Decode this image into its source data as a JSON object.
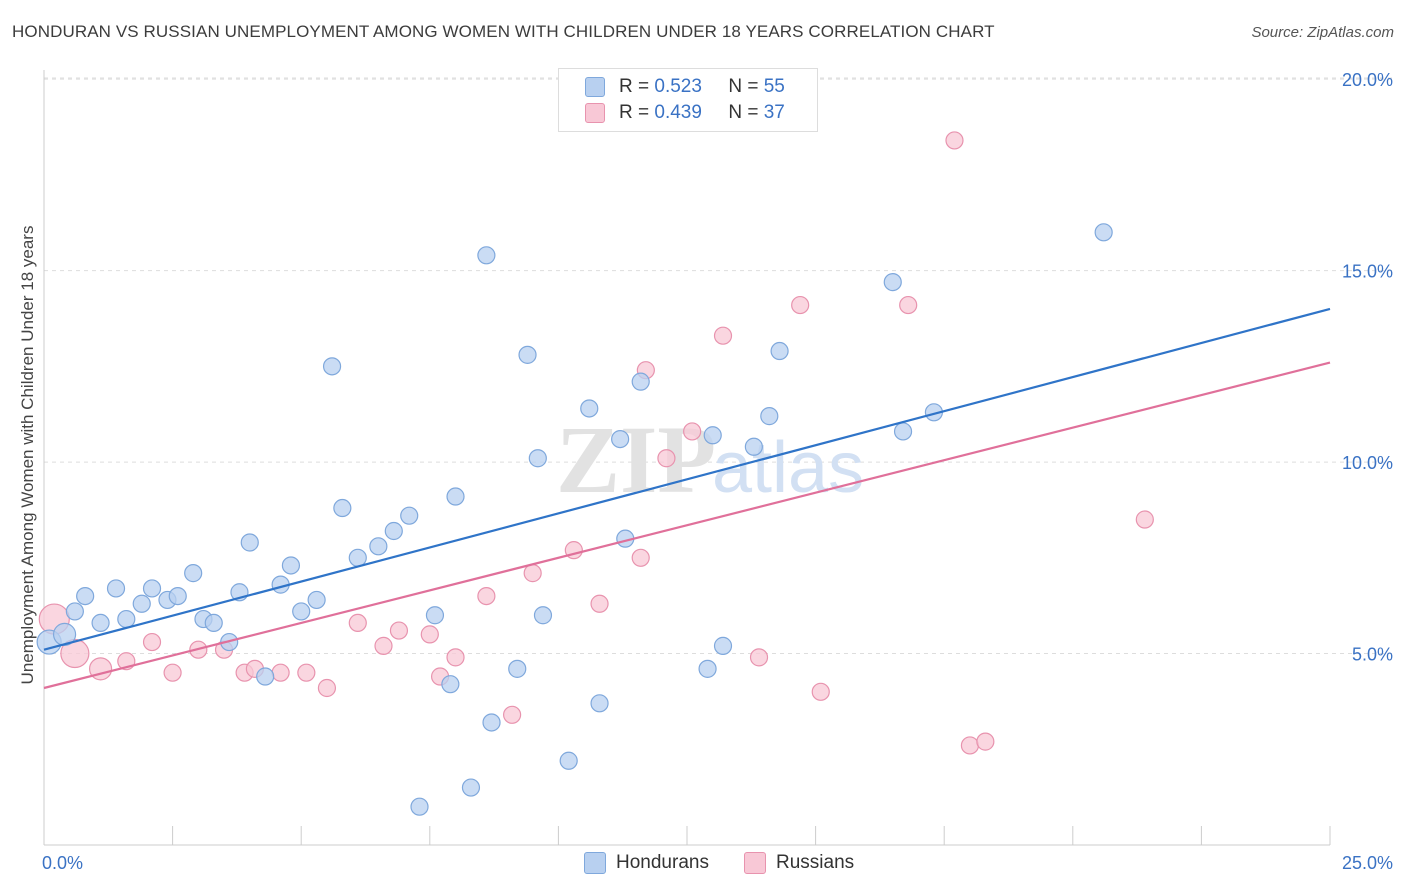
{
  "title": "HONDURAN VS RUSSIAN UNEMPLOYMENT AMONG WOMEN WITH CHILDREN UNDER 18 YEARS CORRELATION CHART",
  "source": "Source: ZipAtlas.com",
  "watermark": {
    "zip": "ZIP",
    "atlas": "atlas"
  },
  "legend": {
    "items": [
      {
        "r_label": "R = ",
        "r_value": "0.523",
        "n_label": "N = ",
        "n_value": "55"
      },
      {
        "r_label": "R = ",
        "r_value": "0.439",
        "n_label": "N = ",
        "n_value": "37"
      }
    ]
  },
  "bottom_legend": [
    "Hondurans",
    "Russians"
  ],
  "colors": {
    "blue_fill": "#b8d0f0",
    "blue_stroke": "#7fa8dc",
    "blue_line": "#2f74c8",
    "pink_fill": "#f8c8d6",
    "pink_stroke": "#e893ae",
    "pink_line": "#e0709a",
    "tick_label": "#3a72c4",
    "grid": "#dddddd"
  },
  "chart_data": {
    "type": "scatter",
    "title": "HONDURAN VS RUSSIAN UNEMPLOYMENT AMONG WOMEN WITH CHILDREN UNDER 18 YEARS CORRELATION CHART",
    "xlabel": "",
    "ylabel": "Unemployment Among Women with Children Under 18 years",
    "xlim": [
      0,
      25
    ],
    "ylim": [
      0,
      20.5
    ],
    "x_tick_labels": [
      "0.0%",
      "25.0%"
    ],
    "y_ticks": [
      5,
      10,
      15,
      20
    ],
    "y_tick_labels": [
      "5.0%",
      "10.0%",
      "15.0%",
      "20.0%"
    ],
    "grid": "horizontal dashed",
    "series": [
      {
        "name": "Hondurans",
        "color": "#b8d0f0",
        "trend": {
          "x": [
            0,
            25
          ],
          "y": [
            5.1,
            14.0
          ]
        },
        "points": [
          [
            0.1,
            5.3
          ],
          [
            0.4,
            5.5
          ],
          [
            0.6,
            6.1
          ],
          [
            0.8,
            6.5
          ],
          [
            1.1,
            5.8
          ],
          [
            1.4,
            6.7
          ],
          [
            1.6,
            5.9
          ],
          [
            1.9,
            6.3
          ],
          [
            2.1,
            6.7
          ],
          [
            2.4,
            6.4
          ],
          [
            2.6,
            6.5
          ],
          [
            2.9,
            7.1
          ],
          [
            3.1,
            5.9
          ],
          [
            3.3,
            5.8
          ],
          [
            3.6,
            5.3
          ],
          [
            3.8,
            6.6
          ],
          [
            4.0,
            7.9
          ],
          [
            4.3,
            4.4
          ],
          [
            4.6,
            6.8
          ],
          [
            4.8,
            7.3
          ],
          [
            5.0,
            6.1
          ],
          [
            5.3,
            6.4
          ],
          [
            5.6,
            12.5
          ],
          [
            5.8,
            8.8
          ],
          [
            6.1,
            7.5
          ],
          [
            6.5,
            7.8
          ],
          [
            6.8,
            8.2
          ],
          [
            7.1,
            8.6
          ],
          [
            7.3,
            1.0
          ],
          [
            7.6,
            6.0
          ],
          [
            7.9,
            4.2
          ],
          [
            8.0,
            9.1
          ],
          [
            8.3,
            1.5
          ],
          [
            8.6,
            15.4
          ],
          [
            8.7,
            3.2
          ],
          [
            9.2,
            4.6
          ],
          [
            9.4,
            12.8
          ],
          [
            9.6,
            10.1
          ],
          [
            9.7,
            6.0
          ],
          [
            10.2,
            2.2
          ],
          [
            10.6,
            11.4
          ],
          [
            10.8,
            3.7
          ],
          [
            11.2,
            10.6
          ],
          [
            11.3,
            8.0
          ],
          [
            11.6,
            12.1
          ],
          [
            12.9,
            4.6
          ],
          [
            13.0,
            10.7
          ],
          [
            13.2,
            5.2
          ],
          [
            13.8,
            10.4
          ],
          [
            14.1,
            11.2
          ],
          [
            14.3,
            12.9
          ],
          [
            16.5,
            14.7
          ],
          [
            16.7,
            10.8
          ],
          [
            17.3,
            11.3
          ],
          [
            20.6,
            16.0
          ]
        ]
      },
      {
        "name": "Russians",
        "color": "#f8c8d6",
        "trend": {
          "x": [
            0,
            25
          ],
          "y": [
            4.1,
            12.6
          ]
        },
        "points": [
          [
            0.2,
            5.9
          ],
          [
            0.6,
            5.0
          ],
          [
            1.1,
            4.6
          ],
          [
            1.6,
            4.8
          ],
          [
            2.1,
            5.3
          ],
          [
            2.5,
            4.5
          ],
          [
            3.0,
            5.1
          ],
          [
            3.5,
            5.1
          ],
          [
            3.9,
            4.5
          ],
          [
            4.1,
            4.6
          ],
          [
            4.6,
            4.5
          ],
          [
            5.1,
            4.5
          ],
          [
            5.5,
            4.1
          ],
          [
            6.1,
            5.8
          ],
          [
            6.6,
            5.2
          ],
          [
            6.9,
            5.6
          ],
          [
            7.5,
            5.5
          ],
          [
            7.7,
            4.4
          ],
          [
            8.0,
            4.9
          ],
          [
            8.6,
            6.5
          ],
          [
            9.1,
            3.4
          ],
          [
            9.5,
            7.1
          ],
          [
            10.3,
            7.7
          ],
          [
            10.8,
            6.3
          ],
          [
            11.6,
            7.5
          ],
          [
            11.7,
            12.4
          ],
          [
            12.1,
            10.1
          ],
          [
            12.6,
            10.8
          ],
          [
            13.2,
            13.3
          ],
          [
            13.9,
            4.9
          ],
          [
            14.7,
            14.1
          ],
          [
            15.1,
            4.0
          ],
          [
            16.8,
            14.1
          ],
          [
            17.7,
            18.4
          ],
          [
            18.0,
            2.6
          ],
          [
            18.3,
            2.7
          ],
          [
            21.4,
            8.5
          ]
        ]
      }
    ]
  }
}
